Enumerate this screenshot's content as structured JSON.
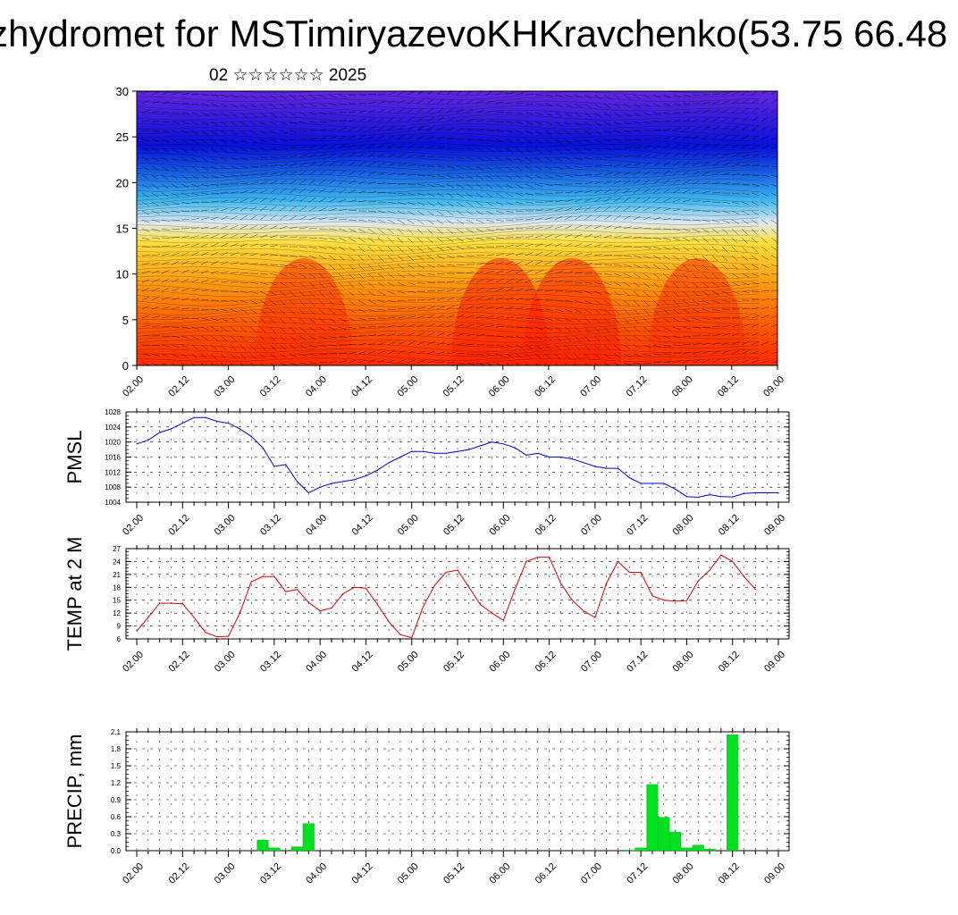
{
  "header": {
    "title": "zhydromet for MSTimiryazevoKHKravchenko(53.75 66.48",
    "subtitle": "02 ☆☆☆☆☆☆ 2025"
  },
  "time_ticks": [
    "02.00",
    "02.12",
    "03.00",
    "03.12",
    "04.00",
    "04.12",
    "05.00",
    "05.12",
    "06.00",
    "06.12",
    "07.00",
    "07.12",
    "08.00",
    "08.12",
    "09.00"
  ],
  "colors": {
    "pmsl": "#0000cc",
    "temp": "#dd0000",
    "precip": "#00e020"
  },
  "chart_data": [
    {
      "type": "heatmap",
      "ylim": [
        0,
        30
      ],
      "yticks": [
        0,
        5,
        10,
        15,
        20,
        25,
        30
      ],
      "description_text": ""
    },
    {
      "type": "line",
      "ylabel": "PMSL",
      "ylim": [
        1004,
        1028
      ],
      "yticks": [
        1004,
        1008,
        1012,
        1016,
        1020,
        1024,
        1028
      ],
      "x": [
        0,
        0.125,
        0.25,
        0.375,
        0.5,
        0.625,
        0.75,
        0.875,
        1,
        1.125,
        1.25,
        1.375,
        1.5,
        1.625,
        1.75,
        1.875,
        2,
        2.125,
        2.25,
        2.375,
        2.5,
        2.625,
        2.75,
        2.875,
        3,
        3.125,
        3.25,
        3.375,
        3.5,
        3.625,
        3.75,
        3.875,
        4,
        4.125,
        4.25,
        4.375,
        4.5,
        4.625,
        4.75,
        4.875,
        5,
        5.125,
        5.25,
        5.375,
        5.5,
        5.625,
        5.75,
        5.875,
        6,
        6.125,
        6.25,
        6.375,
        6.5,
        6.625,
        6.75,
        6.875,
        7
      ],
      "values": [
        1019.5,
        1020.5,
        1022.5,
        1023.5,
        1025,
        1026.5,
        1026.5,
        1025.5,
        1025,
        1023.5,
        1021.5,
        1018.5,
        1013.5,
        1014,
        1009.5,
        1006.5,
        1008,
        1009,
        1009.5,
        1010,
        1011,
        1012.5,
        1014.5,
        1016,
        1017.5,
        1017.5,
        1017,
        1017,
        1017.5,
        1018,
        1019,
        1020,
        1019.5,
        1018.5,
        1016.5,
        1017,
        1016,
        1016,
        1015.5,
        1014.5,
        1013.5,
        1013,
        1013,
        1010.5,
        1009,
        1009,
        1009,
        1007.5,
        1005.5,
        1005.3,
        1006,
        1005.5,
        1005.4,
        1006.3,
        1006.5,
        1006.5,
        1006.5
      ]
    },
    {
      "type": "line",
      "ylabel": "TEMP at 2 M",
      "ylim": [
        6,
        27
      ],
      "yticks": [
        6,
        9,
        12,
        15,
        18,
        21,
        24,
        27
      ],
      "x": [
        0,
        0.125,
        0.25,
        0.375,
        0.5,
        0.625,
        0.75,
        0.875,
        1,
        1.125,
        1.25,
        1.375,
        1.5,
        1.625,
        1.75,
        1.875,
        2,
        2.125,
        2.25,
        2.375,
        2.5,
        2.625,
        2.75,
        2.875,
        3,
        3.125,
        3.25,
        3.375,
        3.5,
        3.625,
        3.75,
        3.875,
        4,
        4.125,
        4.25,
        4.375,
        4.5,
        4.625,
        4.75,
        4.875,
        5,
        5.125,
        5.25,
        5.375,
        5.5,
        5.625,
        5.75,
        5.875,
        6,
        6.125,
        6.25,
        6.375,
        6.5,
        6.625,
        6.75
      ],
      "values": [
        7.8,
        11,
        14.3,
        14.3,
        14.2,
        11,
        7.5,
        6.5,
        6.6,
        12,
        19.3,
        20.5,
        20.5,
        17,
        17.5,
        14.5,
        12.5,
        13.2,
        16.5,
        18,
        17.8,
        14,
        10,
        7,
        6.3,
        13.5,
        18.5,
        21.5,
        22,
        18,
        14,
        12,
        10.3,
        17.5,
        24,
        25,
        25,
        19,
        15,
        12.5,
        11,
        19,
        24,
        21.5,
        21.5,
        16,
        15,
        14.8,
        14.9,
        19.5,
        22,
        25.5,
        24,
        20.5,
        17.5
      ]
    },
    {
      "type": "bar",
      "ylabel": "PRECIP, mm",
      "ylim": [
        0,
        2.1
      ],
      "yticks": [
        0.0,
        0.3,
        0.6,
        0.9,
        1.2,
        1.5,
        1.8,
        2.1
      ],
      "ytick_labels": [
        "0.0",
        "0.3",
        "0.6",
        "0.9",
        "1.2",
        "1.5",
        "1.8",
        "2.1"
      ],
      "x": [
        1.375,
        1.5,
        1.75,
        1.875,
        5.375,
        5.5,
        5.625,
        5.75,
        5.875,
        6.0,
        6.125,
        6.25,
        6.5
      ],
      "values": [
        0.19,
        0.05,
        0.07,
        0.48,
        0.01,
        0.05,
        1.17,
        0.59,
        0.33,
        0.05,
        0.1,
        0.03,
        2.05
      ]
    }
  ]
}
